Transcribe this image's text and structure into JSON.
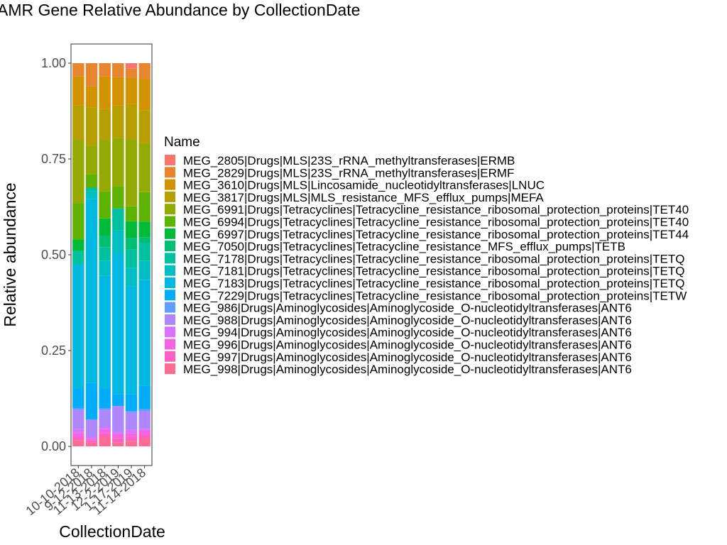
{
  "chart_data": {
    "type": "bar",
    "stacked": true,
    "title": "AMR Gene Relative Abundance by CollectionDate",
    "xlabel": "CollectionDate",
    "ylabel": "Relative abundance",
    "ylim": [
      0,
      1
    ],
    "yticks": [
      "0.00",
      "0.25",
      "0.50",
      "0.75",
      "1.00"
    ],
    "yticks_values": [
      0,
      0.25,
      0.5,
      0.75,
      1.0
    ],
    "categories": [
      "10-10-2018",
      "9-12-2018",
      "11-13-2018",
      "12-2-2019",
      "1-17-2019",
      "11-14-2018"
    ],
    "legend": {
      "title": "Name",
      "position": "right"
    },
    "grid": false,
    "series": [
      {
        "name": "MEG_2805|Drugs|MLS|23S_rRNA_methyltransferases|ERMB",
        "color": "#F8766D",
        "values": [
          0.0,
          0.0,
          0.0,
          0.0,
          0.015,
          0.0
        ]
      },
      {
        "name": "MEG_2829|Drugs|MLS|23S_rRNA_methyltransferases|ERMF",
        "color": "#E8852F",
        "values": [
          0.035,
          0.06,
          0.035,
          0.035,
          0.025,
          0.04
        ]
      },
      {
        "name": "MEG_3610|Drugs|MLS|Lincosamide_nucleotidyltransferases|LNUC",
        "color": "#D39200",
        "values": [
          0.075,
          0.055,
          0.085,
          0.07,
          0.07,
          0.08
        ]
      },
      {
        "name": "MEG_3817|Drugs|MLS|MLS_resistance_MFS_efflux_pumps|MEFA",
        "color": "#B79F00",
        "values": [
          0.09,
          0.1,
          0.08,
          0.08,
          0.095,
          0.085
        ]
      },
      {
        "name": "MEG_6991|Drugs|Tetracyclines|Tetracycline_resistance_ribosomal_protection_proteins|TET40",
        "color": "#93AA00",
        "values": [
          0.165,
          0.075,
          0.135,
          0.12,
          0.18,
          0.125
        ]
      },
      {
        "name": "MEG_6994|Drugs|Tetracyclines|Tetracycline_resistance_ribosomal_protection_proteins|TET40",
        "color": "#5EB300",
        "values": [
          0.095,
          0.035,
          0.07,
          0.055,
          0.04,
          0.075
        ]
      },
      {
        "name": "MEG_6997|Drugs|Tetracyclines|Tetracycline_resistance_ribosomal_protection_proteins|TET44",
        "color": "#00BA38",
        "values": [
          0.03,
          0.0,
          0.045,
          0.0,
          0.045,
          0.04
        ]
      },
      {
        "name": "MEG_7050|Drugs|Tetracyclines|Tetracycline_resistance_MFS_efflux_pumps|TETB",
        "color": "#00BF74",
        "values": [
          0.0,
          0.0,
          0.03,
          0.0,
          0.03,
          0.015
        ]
      },
      {
        "name": "MEG_7178|Drugs|Tetracyclines|Tetracycline_resistance_ribosomal_protection_proteins|TETQ",
        "color": "#00C19F",
        "values": [
          0.035,
          0.01,
          0.035,
          0.055,
          0.05,
          0.045
        ]
      },
      {
        "name": "MEG_7181|Drugs|Tetracyclines|Tetracycline_resistance_ribosomal_protection_proteins|TETQ",
        "color": "#00BFC4",
        "values": [
          0.0,
          0.02,
          0.04,
          0.06,
          0.05,
          0.05
        ]
      },
      {
        "name": "MEG_7183|Drugs|Tetracyclines|Tetracycline_resistance_ribosomal_protection_proteins|TETQ",
        "color": "#00B9E3",
        "values": [
          0.325,
          0.48,
          0.295,
          0.345,
          0.29,
          0.27
        ]
      },
      {
        "name": "MEG_7229|Drugs|Tetracyclines|Tetracycline_resistance_ribosomal_protection_proteins|TETW",
        "color": "#00ADFA",
        "values": [
          0.05,
          0.095,
          0.05,
          0.03,
          0.045,
          0.06
        ]
      },
      {
        "name": "MEG_986|Drugs|Aminoglycosides|Aminoglycoside_O-nucleotidyltransferases|ANT6",
        "color": "#619CFF",
        "values": [
          0.005,
          0.0,
          0.005,
          0.0,
          0.005,
          0.005
        ]
      },
      {
        "name": "MEG_988|Drugs|Aminoglycosides|Aminoglycoside_O-nucleotidyltransferases|ANT6",
        "color": "#AE87FF",
        "values": [
          0.05,
          0.045,
          0.045,
          0.065,
          0.045,
          0.045
        ]
      },
      {
        "name": "MEG_994|Drugs|Aminoglycosides|Aminoglycoside_O-nucleotidyltransferases|ANT6",
        "color": "#DB72FB",
        "values": [
          0.01,
          0.005,
          0.005,
          0.005,
          0.01,
          0.005
        ]
      },
      {
        "name": "MEG_996|Drugs|Aminoglycosides|Aminoglycoside_O-nucleotidyltransferases|ANT6",
        "color": "#F564E3",
        "values": [
          0.01,
          0.005,
          0.01,
          0.01,
          0.01,
          0.01
        ]
      },
      {
        "name": "MEG_997|Drugs|Aminoglycosides|Aminoglycoside_O-nucleotidyltransferases|ANT6",
        "color": "#FF61C3",
        "values": [
          0.01,
          0.005,
          0.01,
          0.01,
          0.01,
          0.01
        ]
      },
      {
        "name": "MEG_998|Drugs|Aminoglycosides|Aminoglycoside_O-nucleotidyltransferases|ANT6",
        "color": "#FF6C91",
        "values": [
          0.015,
          0.01,
          0.025,
          0.01,
          0.015,
          0.02
        ]
      }
    ]
  }
}
